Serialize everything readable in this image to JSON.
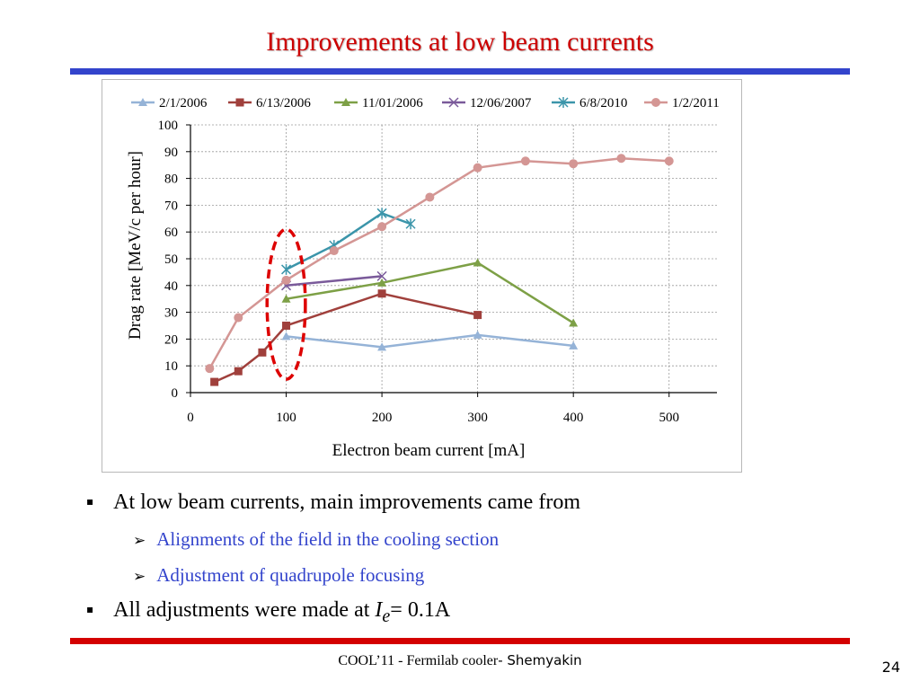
{
  "slide": {
    "title": "Improvements at low beam currents",
    "bullets": [
      {
        "text": "At low beam currents, main improvements came from"
      },
      {
        "text": "Alignments of the field in the cooling section"
      },
      {
        "text": "Adjustment of quadrupole focusing"
      },
      {
        "text_prefix": "All adjustments were made at ",
        "var": "I",
        "sub": "e",
        "text_suffix": "= 0.1A"
      }
    ],
    "footer": {
      "left": "COOL’11 - Fermilab cooler",
      "author": "- Shemyakin"
    },
    "page_number": "24",
    "bullet_marker": "▪",
    "sub_marker": "➢"
  },
  "colors": {
    "title": "#cc0000",
    "top_rule": "#3344cc",
    "bottom_rule": "#d40000",
    "sub_bullet_text": "#3344cc",
    "ellipse": "#dd0000"
  },
  "chart_data": {
    "type": "line",
    "xlabel": "Electron beam current [mA]",
    "ylabel": "Drag rate [MeV/c per hour]",
    "xlim": [
      0,
      550
    ],
    "ylim": [
      0,
      100
    ],
    "xticks": [
      0,
      100,
      200,
      300,
      400,
      500
    ],
    "yticks": [
      0,
      10,
      20,
      30,
      40,
      50,
      60,
      70,
      80,
      90,
      100
    ],
    "grid": true,
    "legend_position": "top",
    "series": [
      {
        "name": "2/1/2006",
        "color": "#95b3d7",
        "marker": "triangle",
        "x": [
          100,
          200,
          300,
          400
        ],
        "y": [
          21,
          17,
          21.5,
          17.5
        ]
      },
      {
        "name": "6/13/2006",
        "color": "#a0403c",
        "marker": "square",
        "x": [
          25,
          50,
          75,
          100,
          200,
          300
        ],
        "y": [
          4,
          8,
          15,
          25,
          37,
          29
        ]
      },
      {
        "name": "11/01/2006",
        "color": "#7da046",
        "marker": "triangle",
        "x": [
          100,
          200,
          300,
          400
        ],
        "y": [
          35,
          41,
          48.5,
          26
        ]
      },
      {
        "name": "12/06/2007",
        "color": "#7a5a9a",
        "marker": "x",
        "x": [
          100,
          200
        ],
        "y": [
          40,
          43.5
        ]
      },
      {
        "name": "6/8/2010",
        "color": "#3b95aa",
        "marker": "star",
        "x": [
          100,
          150,
          200,
          230
        ],
        "y": [
          46,
          55,
          67,
          63
        ]
      },
      {
        "name": "1/2/2011",
        "color": "#d49694",
        "marker": "circle",
        "x": [
          20,
          50,
          100,
          150,
          200,
          250,
          300,
          350,
          400,
          450,
          500
        ],
        "y": [
          9,
          28,
          42,
          53,
          62,
          73,
          84,
          86.5,
          85.5,
          87.5,
          86.5
        ]
      }
    ],
    "annotation": {
      "shape": "dashed-ellipse",
      "center_x": 100,
      "center_y": 33,
      "rx": 20,
      "ry": 28
    }
  }
}
